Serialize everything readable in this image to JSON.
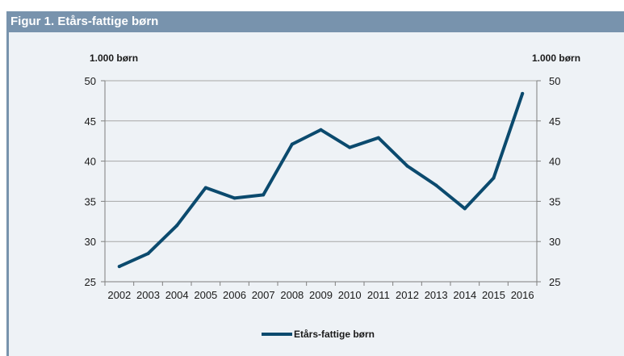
{
  "figure": {
    "title": "Figur 1. Etårs-fattige børn"
  },
  "chart_data": {
    "type": "line",
    "title": "Figur 1. Etårs-fattige børn",
    "y_unit_label_left": "1.000  børn",
    "y_unit_label_right": "1.000  børn",
    "categories": [
      "2002",
      "2003",
      "2004",
      "2005",
      "2006",
      "2007",
      "2008",
      "2009",
      "2010",
      "2011",
      "2012",
      "2013",
      "2014",
      "2015",
      "2016"
    ],
    "series": [
      {
        "name": "Etårs-fattige børn",
        "color": "#0b4a6e",
        "values": [
          26.9,
          28.5,
          32.0,
          36.7,
          35.4,
          35.8,
          42.1,
          43.9,
          41.7,
          42.9,
          39.4,
          37.0,
          34.1,
          37.9,
          48.4
        ]
      }
    ],
    "ylim": [
      25,
      50
    ],
    "yticks": [
      25,
      30,
      35,
      40,
      45,
      50
    ],
    "secondary_y_axis": true,
    "grid": true,
    "legend": "bottom-center"
  }
}
